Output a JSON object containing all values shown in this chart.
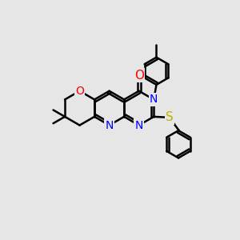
{
  "bg_color": "#e6e6e6",
  "bond_color": "#000000",
  "bond_width": 1.8,
  "atom_colors": {
    "O": "#ff0000",
    "N": "#0000ff",
    "S": "#b8b800",
    "C": "#000000"
  },
  "font_size": 10,
  "BL": 0.72
}
